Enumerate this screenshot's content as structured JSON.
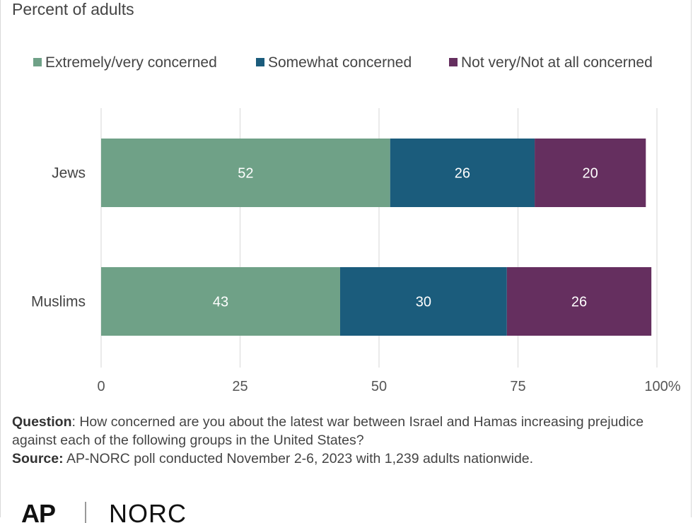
{
  "subtitle": "Percent of adults",
  "chart_data": {
    "type": "bar",
    "orientation": "horizontal",
    "stacked": true,
    "categories": [
      "Jews",
      "Muslims"
    ],
    "series": [
      {
        "name": "Extremely/very concerned",
        "values": [
          52,
          43
        ],
        "color": "#6fa187"
      },
      {
        "name": "Somewhat concerned",
        "values": [
          26,
          30
        ],
        "color": "#1b5c7c"
      },
      {
        "name": "Not very/Not at all concerned",
        "values": [
          20,
          26
        ],
        "color": "#652f5f"
      }
    ],
    "xlim": [
      0,
      100
    ],
    "xticks": [
      0,
      25,
      50,
      75,
      100
    ],
    "xtick_labels": [
      "0",
      "25",
      "50",
      "75",
      "100%"
    ],
    "grid": "vertical",
    "legend": "top",
    "label_color": "#ffffff"
  },
  "notes": {
    "question_label": "Question",
    "question_text": ": How concerned are you about the latest war between Israel and Hamas increasing prejudice against each of the following groups in the United States?",
    "source_label": "Source:",
    "source_text": " AP-NORC poll conducted November 2-6, 2023 with 1,239 adults nationwide."
  },
  "logo": {
    "ap": "AP",
    "norc": "NORC"
  }
}
